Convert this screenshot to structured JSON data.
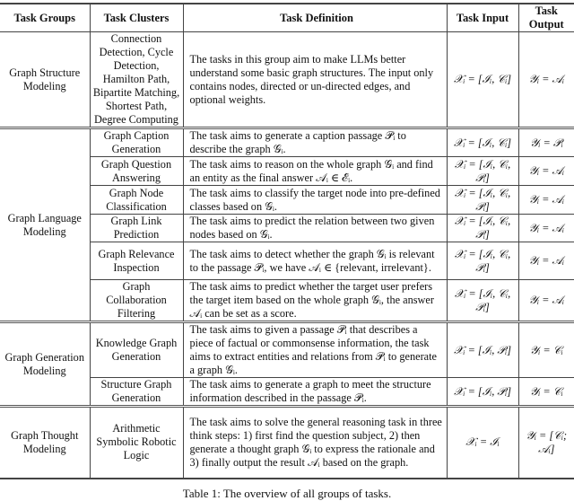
{
  "headers": [
    "Task Groups",
    "Task Clusters",
    "Task Definition",
    "Task Input",
    "Task Output"
  ],
  "groups": [
    {
      "name": "Graph Structure Modeling",
      "rows": [
        {
          "cluster": "Connection Detection, Cycle Detection, Hamilton Path, Bipartite Matching, Shortest Path, Degree Computing",
          "definition": "The tasks in this group aim to make LLMs better understand some basic graph structures. The input only contains nodes, directed or un-directed edges, and optional weights.",
          "input": "𝒳ᵢ = [ℐᵢ, 𝒞ᵢ]",
          "output": "𝒴ᵢ = 𝒜ᵢ"
        }
      ]
    },
    {
      "name": "Graph Language Modeling",
      "rows": [
        {
          "cluster": "Graph Caption Generation",
          "definition": "The task aims to generate a caption passage 𝒫ᵢ to describe the graph 𝒢ᵢ.",
          "input": "𝒳ᵢ = [ℐᵢ, 𝒞ᵢ]",
          "output": "𝒴ᵢ = 𝒫ᵢ"
        },
        {
          "cluster": "Graph Question Answering",
          "definition": "The task aims to reason on the whole graph 𝒢ᵢ and find an entity as the final answer 𝒜ᵢ ∈ ℰᵢ.",
          "input": "𝒳ᵢ = [ℐᵢ, 𝒞ᵢ, 𝒫ᵢ]",
          "output": "𝒴ᵢ = 𝒜ᵢ"
        },
        {
          "cluster": "Graph Node Classification",
          "definition": "The task aims to classify the target node into pre-defined classes based on 𝒢ᵢ.",
          "input": "𝒳ᵢ = [ℐᵢ, 𝒞ᵢ, 𝒫ᵢ]",
          "output": "𝒴ᵢ = 𝒜ᵢ"
        },
        {
          "cluster": "Graph Link Prediction",
          "definition": "The task aims to predict the relation between two given nodes based on 𝒢ᵢ.",
          "input": "𝒳ᵢ = [ℐᵢ, 𝒞ᵢ, 𝒫ᵢ]",
          "output": "𝒴ᵢ = 𝒜ᵢ"
        },
        {
          "cluster": "Graph Relevance Inspection",
          "definition": "The task aims to detect whether the graph 𝒢ᵢ is relevant to the passage 𝒫ᵢ, we have 𝒜ᵢ ∈ {relevant, irrelevant}.",
          "input": "𝒳ᵢ = [ℐᵢ, 𝒞ᵢ, 𝒫ᵢ]",
          "output": "𝒴ᵢ = 𝒜ᵢ"
        },
        {
          "cluster": "Graph Collaboration Filtering",
          "definition": "The task aims to predict whether the target user prefers the target item based on the whole graph 𝒢ᵢ, the answer 𝒜ᵢ can be set as a score.",
          "input": "𝒳ᵢ = [ℐᵢ, 𝒞ᵢ, 𝒫ᵢ]",
          "output": "𝒴ᵢ = 𝒜ᵢ"
        }
      ]
    },
    {
      "name": "Graph Generation Modeling",
      "rows": [
        {
          "cluster": "Knowledge Graph Generation",
          "definition": "The task aims to given a passage 𝒫ᵢ that describes a piece of factual or commonsense information, the task aims to extract entities and relations from 𝒫ᵢ to generate a graph 𝒢ᵢ.",
          "input": "𝒳ᵢ = [ℐᵢ, 𝒫ᵢ]",
          "output": "𝒴ᵢ = 𝒞ᵢ"
        },
        {
          "cluster": "Structure Graph Generation",
          "definition": "The task aims to generate a graph to meet the structure information described in the passage 𝒫ᵢ.",
          "input": "𝒳ᵢ = [ℐᵢ, 𝒫ᵢ]",
          "output": "𝒴ᵢ = 𝒞ᵢ"
        }
      ]
    },
    {
      "name": "Graph Thought Modeling",
      "rows": [
        {
          "cluster": "Arithmetic Symbolic Robotic Logic",
          "definition": "The task aims to solve the general reasoning task in three think steps: 1) first find the question subject, 2) then generate a thought graph 𝒢ᵢ to express the rationale and 3) finally output the result 𝒜ᵢ based on the graph.",
          "input": "𝒳ᵢ = ℐᵢ",
          "output": "𝒴ᵢ = [𝒞ᵢ; 𝒜ᵢ]"
        }
      ]
    }
  ],
  "caption": "Table 1: The overview of all groups of tasks."
}
